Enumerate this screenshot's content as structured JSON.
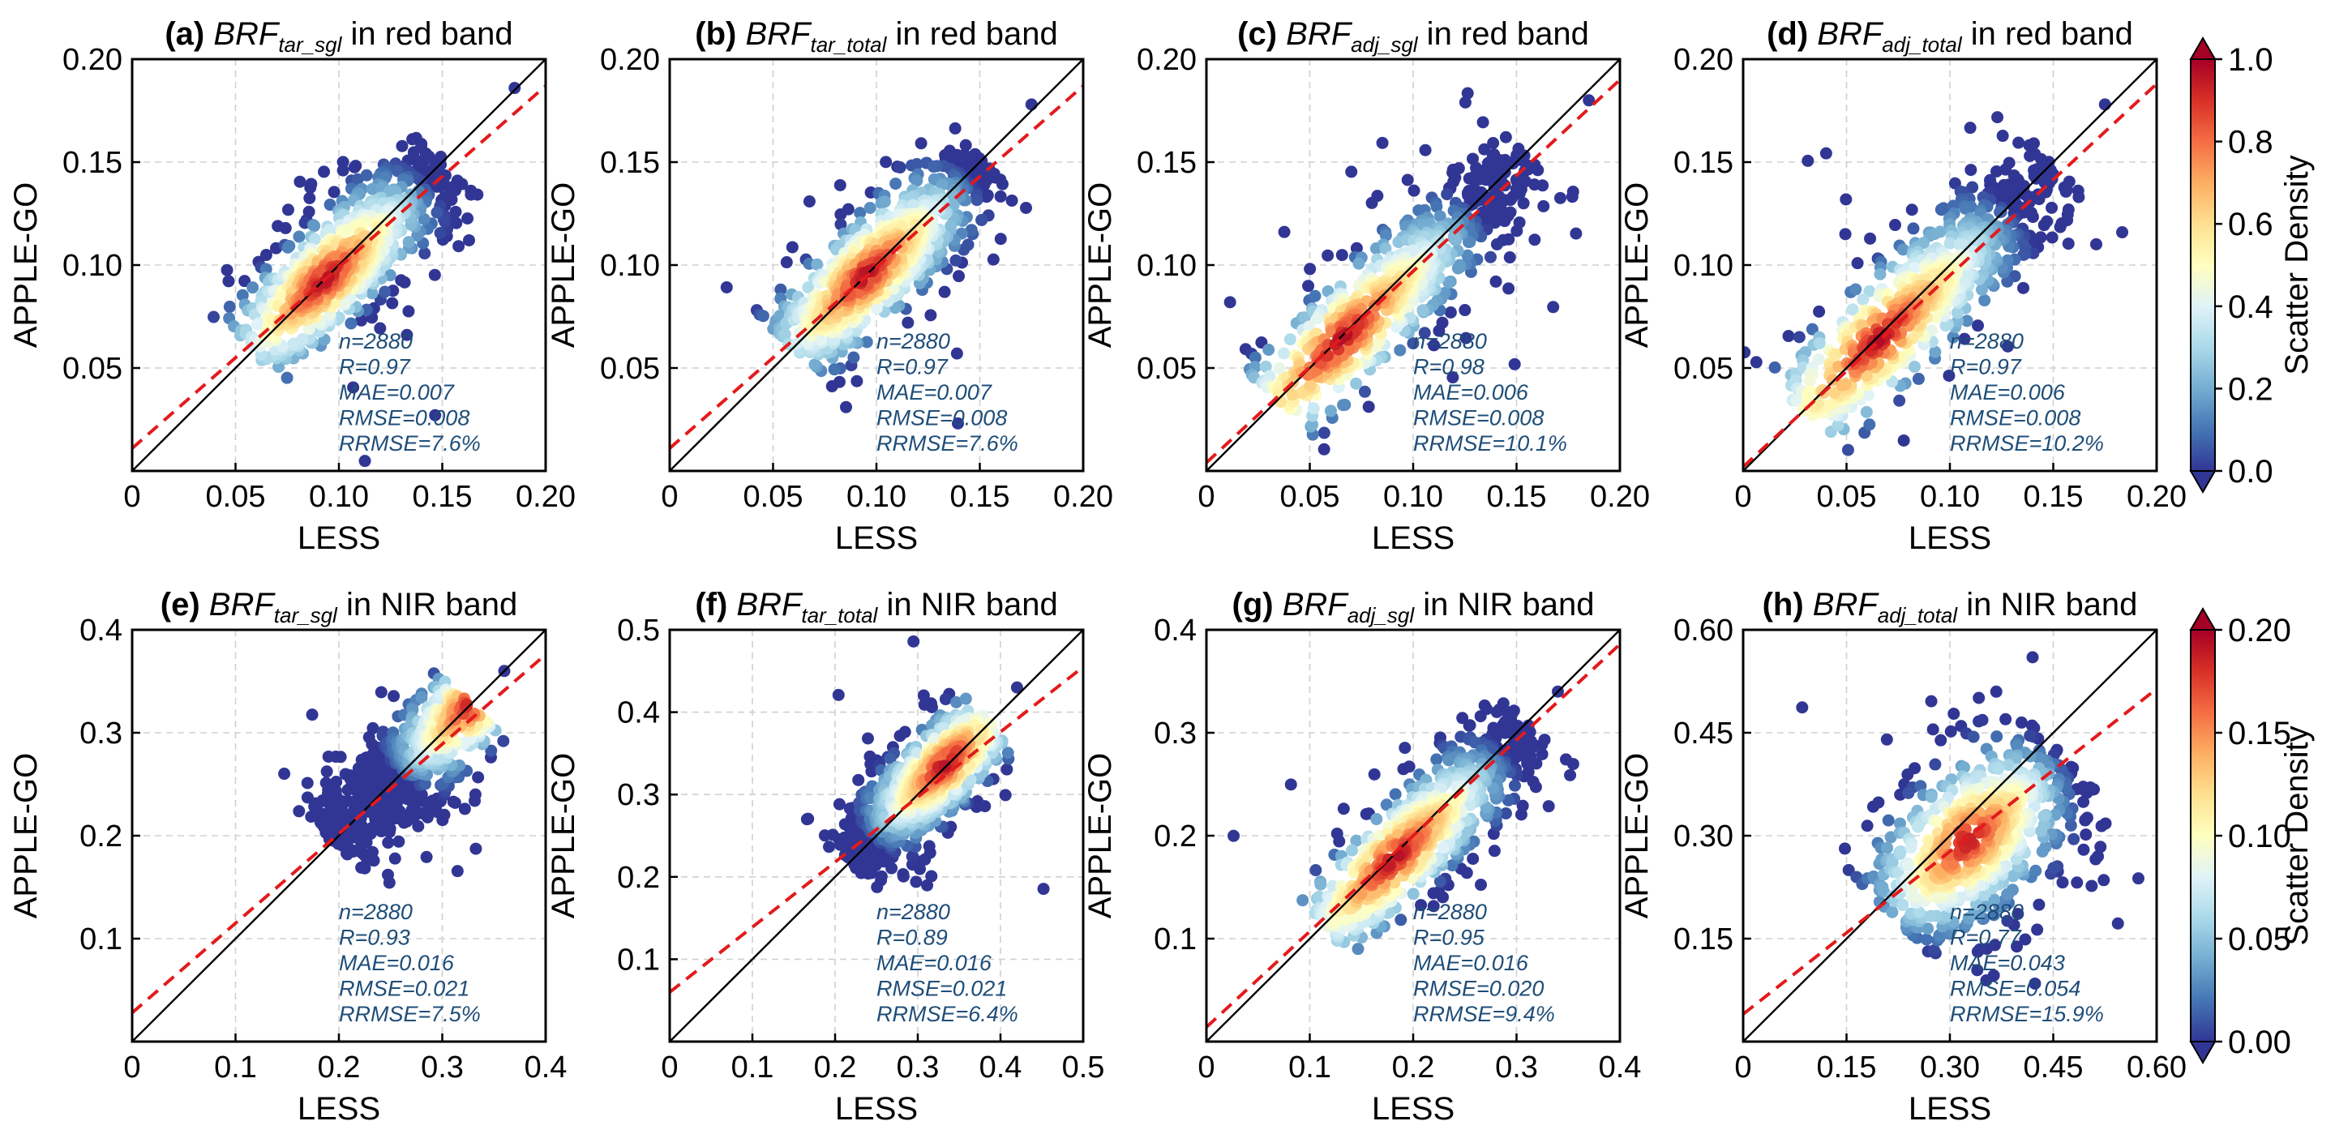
{
  "chart_data": [
    {
      "type": "scatter",
      "panel": "(a)",
      "title_sym": "BRF",
      "title_sub": "tar_sgl",
      "title_rest": " in red band",
      "xlabel": "LESS",
      "ylabel": "APPLE-GO",
      "xlim": [
        0,
        0.2
      ],
      "ylim": [
        0,
        0.2
      ],
      "xticks": [
        "0",
        "0.05",
        "0.10",
        "0.15",
        "0.20"
      ],
      "yticks": [
        "",
        "0.05",
        "0.10",
        "0.15",
        "0.20"
      ],
      "tick_values": [
        0,
        0.05,
        0.1,
        0.15,
        0.2
      ],
      "fit": {
        "slope": 0.88,
        "intercept": 0.011
      },
      "cloud": {
        "cx": 0.105,
        "cy": 0.105,
        "half_len": 0.065,
        "width": 0.012,
        "core": [
          0.093,
          0.093
        ],
        "halo": [
          0.185,
          0.186
        ]
      },
      "stats": [
        "n=2880",
        "R=0.97",
        "MAE=0.007",
        "RMSE=0.008",
        "RRMSE=7.6%"
      ]
    },
    {
      "type": "scatter",
      "panel": "(b)",
      "title_sym": "BRF",
      "title_sub": "tar_total",
      "title_rest": " in red band",
      "xlabel": "LESS",
      "ylabel": "APPLE-GO",
      "xlim": [
        0,
        0.2
      ],
      "ylim": [
        0,
        0.2
      ],
      "xticks": [
        "0",
        "0.05",
        "0.10",
        "0.15",
        "0.20"
      ],
      "yticks": [
        "",
        "0.05",
        "0.10",
        "0.15",
        "0.20"
      ],
      "tick_values": [
        0,
        0.05,
        0.1,
        0.15,
        0.2
      ],
      "fit": {
        "slope": 0.88,
        "intercept": 0.011
      },
      "cloud": {
        "cx": 0.105,
        "cy": 0.105,
        "half_len": 0.065,
        "width": 0.012,
        "core": [
          0.095,
          0.095
        ],
        "halo": [
          0.175,
          0.178
        ]
      },
      "stats": [
        "n=2880",
        "R=0.97",
        "MAE=0.007",
        "RMSE=0.008",
        "RRMSE=7.6%"
      ]
    },
    {
      "type": "scatter",
      "panel": "(c)",
      "title_sym": "BRF",
      "title_sub": "adj_sgl",
      "title_rest": " in red band",
      "xlabel": "LESS",
      "ylabel": "APPLE-GO",
      "xlim": [
        0,
        0.2
      ],
      "ylim": [
        0,
        0.2
      ],
      "xticks": [
        "0",
        "0.05",
        "0.10",
        "0.15",
        "0.20"
      ],
      "yticks": [
        "",
        "0.05",
        "0.10",
        "0.15",
        "0.20"
      ],
      "tick_values": [
        0,
        0.05,
        0.1,
        0.15,
        0.2
      ],
      "fit": {
        "slope": 0.93,
        "intercept": 0.004
      },
      "cloud": {
        "cx": 0.095,
        "cy": 0.093,
        "half_len": 0.085,
        "width": 0.012,
        "core": [
          0.065,
          0.065
        ],
        "halo": [
          0.185,
          0.18
        ]
      },
      "stats": [
        "n=2880",
        "R=0.98",
        "MAE=0.006",
        "RMSE=0.008",
        "RRMSE=10.1%"
      ]
    },
    {
      "type": "scatter",
      "panel": "(d)",
      "title_sym": "BRF",
      "title_sub": "adj_total",
      "title_rest": " in red band",
      "xlabel": "LESS",
      "ylabel": "APPLE-GO",
      "xlim": [
        0,
        0.2
      ],
      "ylim": [
        0,
        0.2
      ],
      "xticks": [
        "0",
        "0.05",
        "0.10",
        "0.15",
        "0.20"
      ],
      "yticks": [
        "",
        "0.05",
        "0.10",
        "0.15",
        "0.20"
      ],
      "tick_values": [
        0,
        0.05,
        0.1,
        0.15,
        0.2
      ],
      "fit": {
        "slope": 0.93,
        "intercept": 0.002
      },
      "cloud": {
        "cx": 0.09,
        "cy": 0.088,
        "half_len": 0.085,
        "width": 0.013,
        "core": [
          0.065,
          0.065
        ],
        "halo": [
          0.175,
          0.178
        ]
      },
      "stats": [
        "n=2880",
        "R=0.97",
        "MAE=0.006",
        "RMSE=0.008",
        "RRMSE=10.2%"
      ]
    },
    {
      "type": "scatter",
      "panel": "(e)",
      "title_sym": "BRF",
      "title_sub": "tar_sgl",
      "title_rest": " in NIR band",
      "xlabel": "LESS",
      "ylabel": "APPLE-GO",
      "xlim": [
        0,
        0.4
      ],
      "ylim": [
        0,
        0.4
      ],
      "xticks": [
        "0",
        "0.1",
        "0.2",
        "0.3",
        "0.4"
      ],
      "yticks": [
        "",
        "0.1",
        "0.2",
        "0.3",
        "0.4"
      ],
      "tick_values": [
        0,
        0.1,
        0.2,
        0.3,
        0.4
      ],
      "fit": {
        "slope": 0.87,
        "intercept": 0.028
      },
      "cloud": {
        "cx": 0.26,
        "cy": 0.26,
        "half_len": 0.095,
        "width": 0.022,
        "core": [
          0.33,
          0.33
        ],
        "halo": [
          0.36,
          0.36
        ]
      },
      "stats": [
        "n=2880",
        "R=0.93",
        "MAE=0.016",
        "RMSE=0.021",
        "RRMSE=7.5%"
      ]
    },
    {
      "type": "scatter",
      "panel": "(f)",
      "title_sym": "BRF",
      "title_sub": "tar_total",
      "title_rest": " in NIR band",
      "xlabel": "LESS",
      "ylabel": "APPLE-GO",
      "xlim": [
        0,
        0.5
      ],
      "ylim": [
        0,
        0.5
      ],
      "xticks": [
        "0",
        "0.1",
        "0.2",
        "0.3",
        "0.4",
        "0.5"
      ],
      "yticks": [
        "",
        "0.1",
        "0.2",
        "0.3",
        "0.4",
        "0.5"
      ],
      "tick_values": [
        0,
        0.1,
        0.2,
        0.3,
        0.4,
        0.5
      ],
      "fit": {
        "slope": 0.79,
        "intercept": 0.06
      },
      "cloud": {
        "cx": 0.3,
        "cy": 0.305,
        "half_len": 0.12,
        "width": 0.025,
        "core": [
          0.335,
          0.335
        ],
        "halo": [
          0.42,
          0.43
        ]
      },
      "stats": [
        "n=2880",
        "R=0.89",
        "MAE=0.016",
        "RMSE=0.021",
        "RRMSE=6.4%"
      ]
    },
    {
      "type": "scatter",
      "panel": "(g)",
      "title_sym": "BRF",
      "title_sub": "adj_sgl",
      "title_rest": " in NIR band",
      "xlabel": "LESS",
      "ylabel": "APPLE-GO",
      "xlim": [
        0,
        0.4
      ],
      "ylim": [
        0,
        0.4
      ],
      "xticks": [
        "0",
        "0.1",
        "0.2",
        "0.3",
        "0.4"
      ],
      "yticks": [
        "",
        "0.1",
        "0.2",
        "0.3",
        "0.4"
      ],
      "tick_values": [
        0,
        0.1,
        0.2,
        0.3,
        0.4
      ],
      "fit": {
        "slope": 0.93,
        "intercept": 0.014
      },
      "cloud": {
        "cx": 0.215,
        "cy": 0.21,
        "half_len": 0.14,
        "width": 0.022,
        "core": [
          0.18,
          0.18
        ],
        "halo": [
          0.34,
          0.34
        ]
      },
      "stats": [
        "n=2880",
        "R=0.95",
        "MAE=0.016",
        "RMSE=0.020",
        "RRMSE=9.4%"
      ]
    },
    {
      "type": "scatter",
      "panel": "(h)",
      "title_sym": "BRF",
      "title_sub": "adj_total",
      "title_rest": " in NIR band",
      "xlabel": "LESS",
      "ylabel": "APPLE-GO",
      "xlim": [
        0,
        0.6
      ],
      "ylim": [
        0,
        0.6
      ],
      "xticks": [
        "0",
        "0.15",
        "0.30",
        "0.45",
        "0.60"
      ],
      "yticks": [
        "",
        "0.15",
        "0.30",
        "0.45",
        "0.60"
      ],
      "tick_values": [
        0,
        0.15,
        0.3,
        0.45,
        0.6
      ],
      "fit": {
        "slope": 0.79,
        "intercept": 0.04
      },
      "cloud": {
        "cx": 0.34,
        "cy": 0.3,
        "half_len": 0.17,
        "width": 0.055,
        "core": [
          0.32,
          0.3
        ],
        "halo": [
          0.42,
          0.56
        ]
      },
      "stats": [
        "n=2880",
        "R=0.77",
        "MAE=0.043",
        "RMSE=0.054",
        "RRMSE=15.9%"
      ]
    }
  ],
  "colorbars": [
    {
      "label": "Scatter Density",
      "ticks": [
        "0.0",
        "0.2",
        "0.4",
        "0.6",
        "0.8",
        "1.0"
      ],
      "range": [
        0,
        1
      ]
    },
    {
      "label": "Scatter Density",
      "ticks": [
        "0.00",
        "0.05",
        "0.10",
        "0.15",
        "0.20"
      ],
      "range": [
        0,
        0.2
      ]
    }
  ],
  "colors": {
    "colormap": [
      "#313695",
      "#4575b4",
      "#74add1",
      "#abd9e9",
      "#e0f3f8",
      "#ffffbf",
      "#fee090",
      "#fdae61",
      "#f46d43",
      "#d73027",
      "#a50026"
    ],
    "one_to_one_line": "#000000",
    "fit_line": "#e31a1c",
    "stats_text": "#1f4e79"
  }
}
